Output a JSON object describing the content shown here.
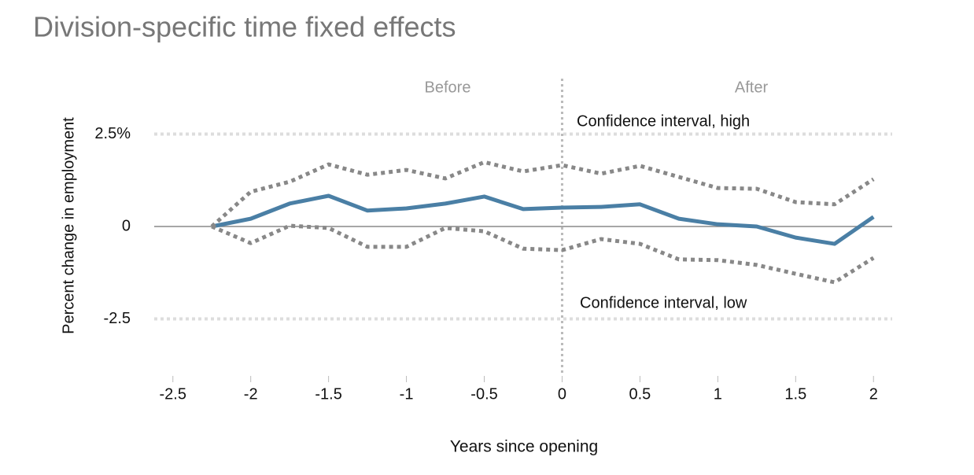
{
  "chart_data": {
    "type": "line",
    "title": "Division-specific time fixed effects",
    "x_label": "Years since opening",
    "y_label": "Percent change in employment",
    "x": [
      -2.25,
      -2,
      -1.75,
      -1.5,
      -1.25,
      -1,
      -0.75,
      -0.5,
      -0.25,
      0,
      0.25,
      0.5,
      0.75,
      1,
      1.25,
      1.5,
      1.75,
      2
    ],
    "series": [
      {
        "color": "#4a7fa5",
        "dotted": false,
        "values": [
          0,
          0.21,
          0.62,
          0.83,
          0.43,
          0.49,
          0.62,
          0.81,
          0.47,
          0.51,
          0.53,
          0.6,
          0.21,
          0.06,
          0,
          -0.3,
          -0.47,
          0.26
        ]
      },
      {
        "name": "Confidence interval, high",
        "color": "#888888",
        "dotted": true,
        "values": [
          0,
          0.94,
          1.21,
          1.68,
          1.4,
          1.53,
          1.3,
          1.74,
          1.49,
          1.66,
          1.43,
          1.64,
          1.34,
          1.04,
          1.02,
          0.66,
          0.6,
          1.28
        ]
      },
      {
        "name": "Confidence interval, low",
        "color": "#888888",
        "dotted": true,
        "values": [
          0,
          -0.45,
          0.02,
          -0.04,
          -0.55,
          -0.55,
          -0.04,
          -0.13,
          -0.6,
          -0.64,
          -0.34,
          -0.47,
          -0.89,
          -0.91,
          -1.04,
          -1.28,
          -1.51,
          -0.85
        ]
      }
    ],
    "annotations": [
      "Before",
      "After"
    ],
    "vline": 0,
    "xlim": [
      -2.62,
      2.12
    ],
    "xticks": [
      -2.5,
      -2,
      -1.5,
      -1,
      -0.5,
      0,
      0.5,
      1,
      1.5,
      2
    ],
    "ylim": [
      -4,
      4
    ],
    "yticks": [
      {
        "value": 2.5,
        "label": "2.5%"
      },
      0,
      -2.5
    ],
    "grid": true
  }
}
